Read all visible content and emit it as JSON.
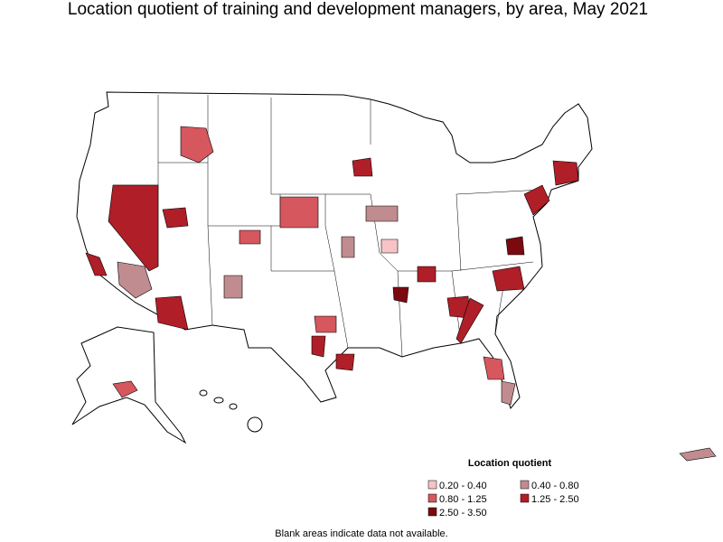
{
  "title": "Location quotient of training and development managers, by area, May 2021",
  "legend": {
    "title": "Location quotient",
    "items": [
      {
        "label": "0.20 - 0.40",
        "color": "#f7c3c7"
      },
      {
        "label": "0.40 - 0.80",
        "color": "#c08c90"
      },
      {
        "label": "0.80 - 1.25",
        "color": "#d6575e"
      },
      {
        "label": "1.25 - 2.50",
        "color": "#b01e28"
      },
      {
        "label": "2.50 - 3.50",
        "color": "#7a0a10"
      }
    ]
  },
  "note": "Blank areas indicate data not available."
}
